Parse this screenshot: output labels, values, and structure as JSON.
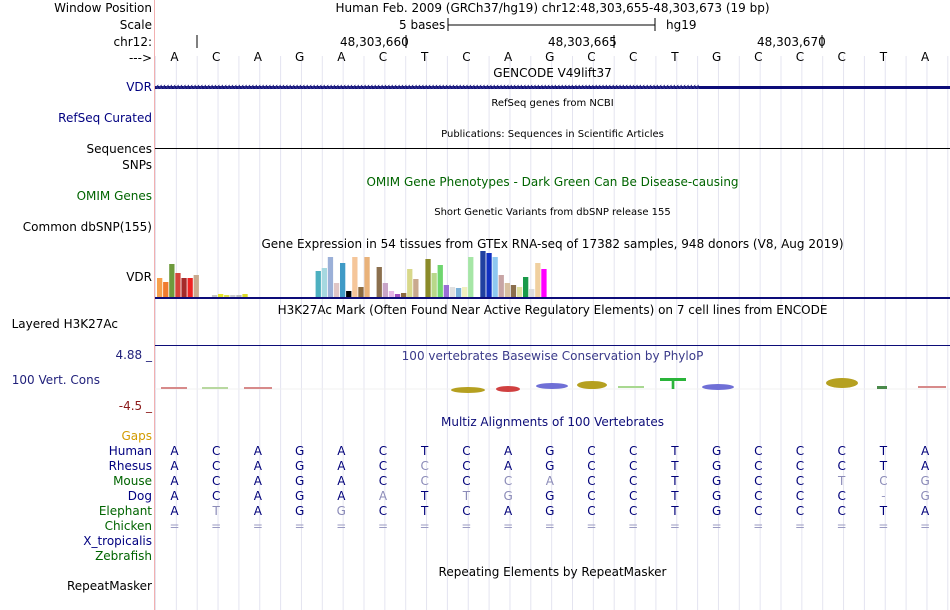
{
  "labels": {
    "window_position": "Window Position",
    "scale": "Scale",
    "chrom": "chr12:",
    "strand_arrow": "--->",
    "vdr": "VDR",
    "refseq_curated": "RefSeq Curated",
    "sequences": "Sequences",
    "snps": "SNPs",
    "omim_genes": "OMIM Genes",
    "common_dbsnp": "Common dbSNP(155)",
    "vdr_gtex": "VDR",
    "layered_h3k27ac": "Layered H3K27Ac",
    "cons_max": "4.88 _",
    "cons_label": "100 Vert. Cons",
    "cons_min": "-4.5 _",
    "gaps": "Gaps",
    "species": [
      "Human",
      "Rhesus",
      "Mouse",
      "Dog",
      "Elephant",
      "Chicken",
      "X_tropicalis",
      "Zebrafish"
    ],
    "repeatmasker": "RepeatMasker"
  },
  "position": {
    "assembly_text": "Human Feb. 2009 (GRCh37/hg19)   chr12:48,303,655-48,303,673 (19 bp)",
    "scale_text": "5 bases",
    "scale_db": "hg19",
    "ticks": [
      "48,303,660",
      "48,303,665",
      "48,303,670"
    ]
  },
  "sequence": [
    "A",
    "C",
    "A",
    "G",
    "A",
    "C",
    "T",
    "C",
    "A",
    "G",
    "C",
    "C",
    "T",
    "G",
    "C",
    "C",
    "C",
    "T",
    "A"
  ],
  "tracks": {
    "gencode_title": "GENCODE V49lift37",
    "refseq_title": "RefSeq genes from NCBI",
    "publications_title": "Publications: Sequences in Scientific Articles",
    "omim_title": "OMIM Gene Phenotypes - Dark Green Can Be Disease-causing",
    "dbsnp_title": "Short Genetic Variants from dbSNP release 155",
    "gtex_title": "Gene Expression in 54 tissues from GTEx RNA-seq of 17382 samples, 948 donors (V8, Aug 2019)",
    "h3k27ac_title": "H3K27Ac Mark (Often Found Near Active Regulatory Elements) on 7 cell lines from ENCODE",
    "phylop_title": "100 vertebrates Basewise Conservation by PhyloP",
    "multiz_title": "Multiz Alignments of 100 Vertebrates",
    "repeatmasker_title": "Repeating Elements by RepeatMasker"
  },
  "alignments": {
    "Human": [
      "A",
      "C",
      "A",
      "G",
      "A",
      "C",
      "T",
      "C",
      "A",
      "G",
      "C",
      "C",
      "T",
      "G",
      "C",
      "C",
      "C",
      "T",
      "A"
    ],
    "Rhesus": [
      "A",
      "C",
      "A",
      "G",
      "A",
      "C",
      "C",
      "C",
      "A",
      "G",
      "C",
      "C",
      "T",
      "G",
      "C",
      "C",
      "C",
      "T",
      "A"
    ],
    "Mouse": [
      "A",
      "C",
      "A",
      "G",
      "A",
      "C",
      "C",
      "C",
      "C",
      "A",
      "C",
      "C",
      "T",
      "G",
      "C",
      "C",
      "T",
      "C",
      "G"
    ],
    "Dog": [
      "A",
      "C",
      "A",
      "G",
      "A",
      "A",
      "T",
      "T",
      "G",
      "G",
      "C",
      "C",
      "T",
      "G",
      "C",
      "C",
      "C",
      "-",
      "G"
    ],
    "Elephant": [
      "A",
      "T",
      "A",
      "G",
      "G",
      "C",
      "T",
      "C",
      "A",
      "G",
      "C",
      "C",
      "T",
      "G",
      "C",
      "C",
      "C",
      "T",
      "A"
    ],
    "Chicken": [
      "=",
      "=",
      "=",
      "=",
      "=",
      "=",
      "=",
      "=",
      "=",
      "=",
      "=",
      "=",
      "=",
      "=",
      "=",
      "=",
      "=",
      "=",
      "="
    ]
  },
  "colors": {
    "label_blue": "#000080",
    "omim_green": "#006400",
    "gaps_orange": "#d29b00",
    "cons_max_blue": "#1f1f7a",
    "cons_min_red": "#8b1a1a",
    "vdr_blue": "#0c0c78",
    "phylop_blue": "#3a3a8a",
    "grid": "#e3e3ee"
  }
}
